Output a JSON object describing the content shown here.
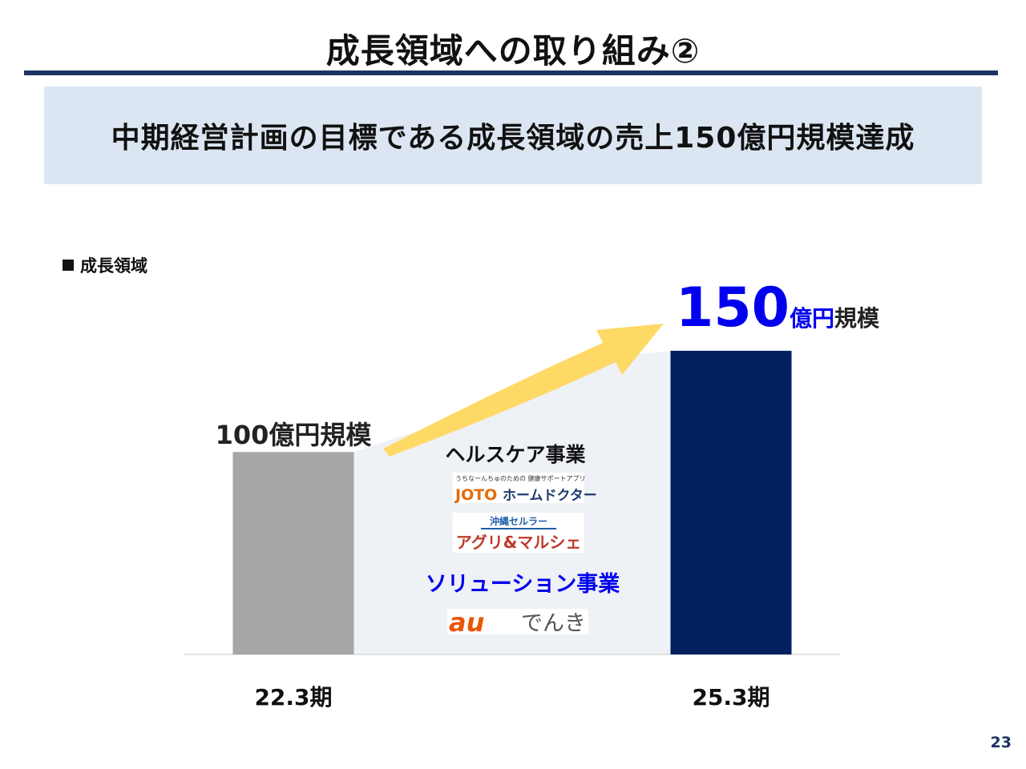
{
  "slide": {
    "title": "成長領域への取り組み②",
    "banner": "中期経営計画の目標である成長領域の売上150億円規模達成",
    "section_label": "成長領域",
    "page_number": "23"
  },
  "colors": {
    "title_rule": "#1e3264",
    "banner_bg": "#dce6f2",
    "bar_past": "#a6a6a6",
    "bar_target": "#002060",
    "arrow": "#ffd966",
    "target_value": "#0000ee",
    "solution_label": "#0000ee"
  },
  "chart_data": {
    "type": "bar",
    "categories": [
      "22.3期",
      "25.3期"
    ],
    "values": [
      100,
      150
    ],
    "unit": "億円",
    "value_labels": [
      {
        "text": "100億円規模"
      },
      {
        "number": "150",
        "unit": "億円",
        "suffix": "規模"
      }
    ],
    "ylim": [
      0,
      165
    ],
    "grid": false,
    "legend": "none",
    "annotations": {
      "arrow": "growth-arrow",
      "segments": [
        {
          "label": "ヘルスケア事業",
          "items": [
            "JOTOホームドクター",
            "沖縄セルラー アグリ&マルシェ"
          ]
        },
        {
          "label": "ソリューション事業",
          "items": [
            "auでんき"
          ]
        }
      ]
    }
  },
  "logos": {
    "joto": {
      "tagline": "うちなーんちゅのための 健康サポートアプリ",
      "brand": "JOTO",
      "name": "ホームドクター"
    },
    "agri": {
      "top": "沖縄セルラー",
      "main": "アグリ&マルシェ"
    },
    "au": {
      "mark": "au",
      "name": "でんき"
    }
  }
}
